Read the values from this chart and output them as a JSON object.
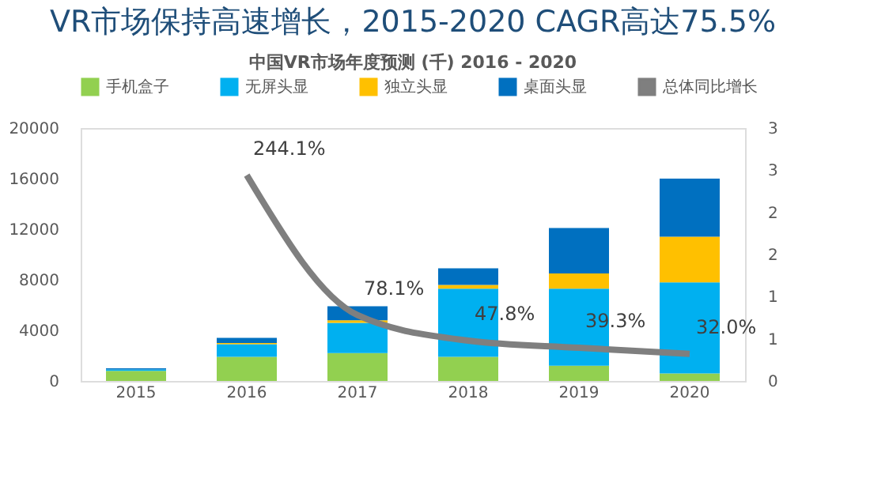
{
  "chart_data": {
    "type": "bar",
    "title": "VR市场保持高速增长，2015-2020 CAGR高达75.5%",
    "subtitle": "中国VR市场年度预测 (千) 2016 - 2020",
    "categories": [
      "2015",
      "2016",
      "2017",
      "2018",
      "2019",
      "2020"
    ],
    "stacked": true,
    "legend": "top",
    "grid": false,
    "ylim": [
      0,
      20000
    ],
    "yticks": [
      0,
      4000,
      8000,
      12000,
      16000,
      20000
    ],
    "y2lim": [
      0,
      3
    ],
    "y2ticks": [
      0,
      {
        "value": 0.5,
        "label": "1"
      },
      1,
      {
        "value": 1.5,
        "label": "2"
      },
      2,
      {
        "value": 2.5,
        "label": "3"
      },
      3
    ],
    "series": [
      {
        "name": "手机盒子",
        "color": "#92d050",
        "values": [
          800,
          1900,
          2200,
          1900,
          1200,
          600
        ]
      },
      {
        "name": "无屏头显",
        "color": "#00b0f0",
        "values": [
          100,
          1000,
          2400,
          5400,
          6100,
          7200
        ]
      },
      {
        "name": "独立头显",
        "color": "#ffc000",
        "values": [
          0,
          100,
          200,
          300,
          1200,
          3600
        ]
      },
      {
        "name": "桌面头显",
        "color": "#0070c0",
        "values": [
          100,
          400,
          1100,
          1300,
          3600,
          4600
        ]
      },
      {
        "name": "总体同比增长",
        "type": "line",
        "axis": "y2",
        "color": "#7f7f7f",
        "values": [
          null,
          2.441,
          0.781,
          0.478,
          0.393,
          0.32
        ],
        "value_labels": [
          null,
          "244.1%",
          "78.1%",
          "47.8%",
          "39.3%",
          "32.0%"
        ]
      }
    ]
  }
}
